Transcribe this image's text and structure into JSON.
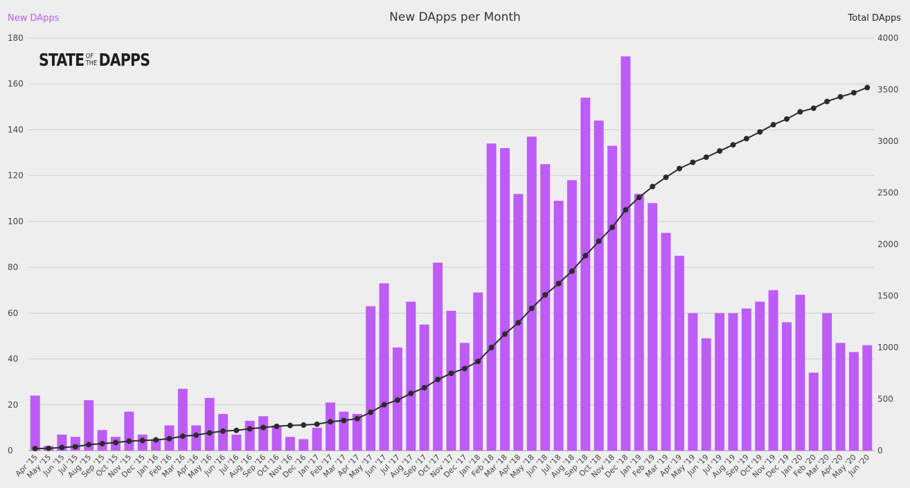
{
  "header": {
    "title": "New DApps per Month",
    "left_axis_label": "New DApps",
    "right_axis_label": "Total DApps"
  },
  "logo": {
    "part1": "STATE",
    "mini_top": "OF",
    "mini_bottom": "THE",
    "part2": "DAPPS"
  },
  "colors": {
    "bar": "#bd5cf7",
    "line": "#2b2b2b",
    "grid": "#cfcfcf",
    "background": "#eeeeee",
    "left_label": "#b85cf5"
  },
  "chart_data": {
    "type": "bar",
    "title": "New DApps per Month",
    "grid": true,
    "categories": [
      "Apr '15",
      "May '15",
      "Jun '15",
      "Jul '15",
      "Aug '15",
      "Sep '15",
      "Oct '15",
      "Nov '15",
      "Dec '15",
      "Jan '16",
      "Feb '16",
      "Mar '16",
      "Apr '16",
      "May '16",
      "Jun '16",
      "Jul '16",
      "Aug '16",
      "Sep '16",
      "Oct '16",
      "Nov '16",
      "Dec '16",
      "Jan '17",
      "Feb '17",
      "Mar '17",
      "Apr '17",
      "May '17",
      "Jun '17",
      "Jul '17",
      "Aug '17",
      "Sep '17",
      "Oct '17",
      "Nov '17",
      "Dec '17",
      "Jan '18",
      "Feb '18",
      "Mar '18",
      "Apr '18",
      "May '18",
      "Jun '18",
      "Jul '18",
      "Aug '18",
      "Sep '18",
      "Oct '18",
      "Nov '18",
      "Dec '18",
      "Jan '19",
      "Feb '19",
      "Mar '19",
      "Apr '19",
      "May '19",
      "Jun '19",
      "Jul '19",
      "Aug '19",
      "Sep '19",
      "Oct '19",
      "Nov '19",
      "Dec '19",
      "Jan '20",
      "Feb '20",
      "Mar '20",
      "Apr '20",
      "May '20",
      "Jun '20"
    ],
    "series": [
      {
        "name": "New DApps",
        "type": "bar",
        "axis": "left",
        "values": [
          24,
          2,
          7,
          6,
          22,
          9,
          6,
          17,
          7,
          5,
          11,
          27,
          11,
          23,
          16,
          7,
          13,
          15,
          11,
          6,
          5,
          10,
          21,
          17,
          16,
          63,
          73,
          45,
          65,
          55,
          82,
          61,
          47,
          69,
          134,
          132,
          112,
          137,
          125,
          109,
          118,
          154,
          144,
          133,
          172,
          112,
          108,
          95,
          85,
          60,
          49,
          60,
          60,
          62,
          65,
          70,
          56,
          68,
          34,
          60,
          47,
          43,
          46
        ]
      },
      {
        "name": "Total DApps",
        "type": "line",
        "axis": "right",
        "values": [
          20,
          22,
          30,
          38,
          58,
          68,
          78,
          92,
          98,
          104,
          116,
          140,
          150,
          172,
          190,
          196,
          212,
          224,
          236,
          244,
          248,
          256,
          280,
          292,
          310,
          372,
          445,
          490,
          555,
          610,
          690,
          750,
          795,
          865,
          1000,
          1130,
          1240,
          1380,
          1510,
          1620,
          1740,
          1890,
          2030,
          2165,
          2335,
          2455,
          2560,
          2650,
          2735,
          2795,
          2845,
          2905,
          2965,
          3025,
          3090,
          3160,
          3215,
          3285,
          3320,
          3385,
          3430,
          3470,
          3520
        ]
      }
    ],
    "ylim_left": [
      0,
      180
    ],
    "ylim_right": [
      0,
      4000
    ],
    "y_ticks_left": [
      "0",
      "20",
      "40",
      "60",
      "80",
      "100",
      "120",
      "140",
      "160",
      "180"
    ],
    "y_ticks_right": [
      "0",
      "500",
      "1000",
      "1500",
      "2000",
      "2500",
      "3000",
      "3500",
      "4000"
    ]
  }
}
